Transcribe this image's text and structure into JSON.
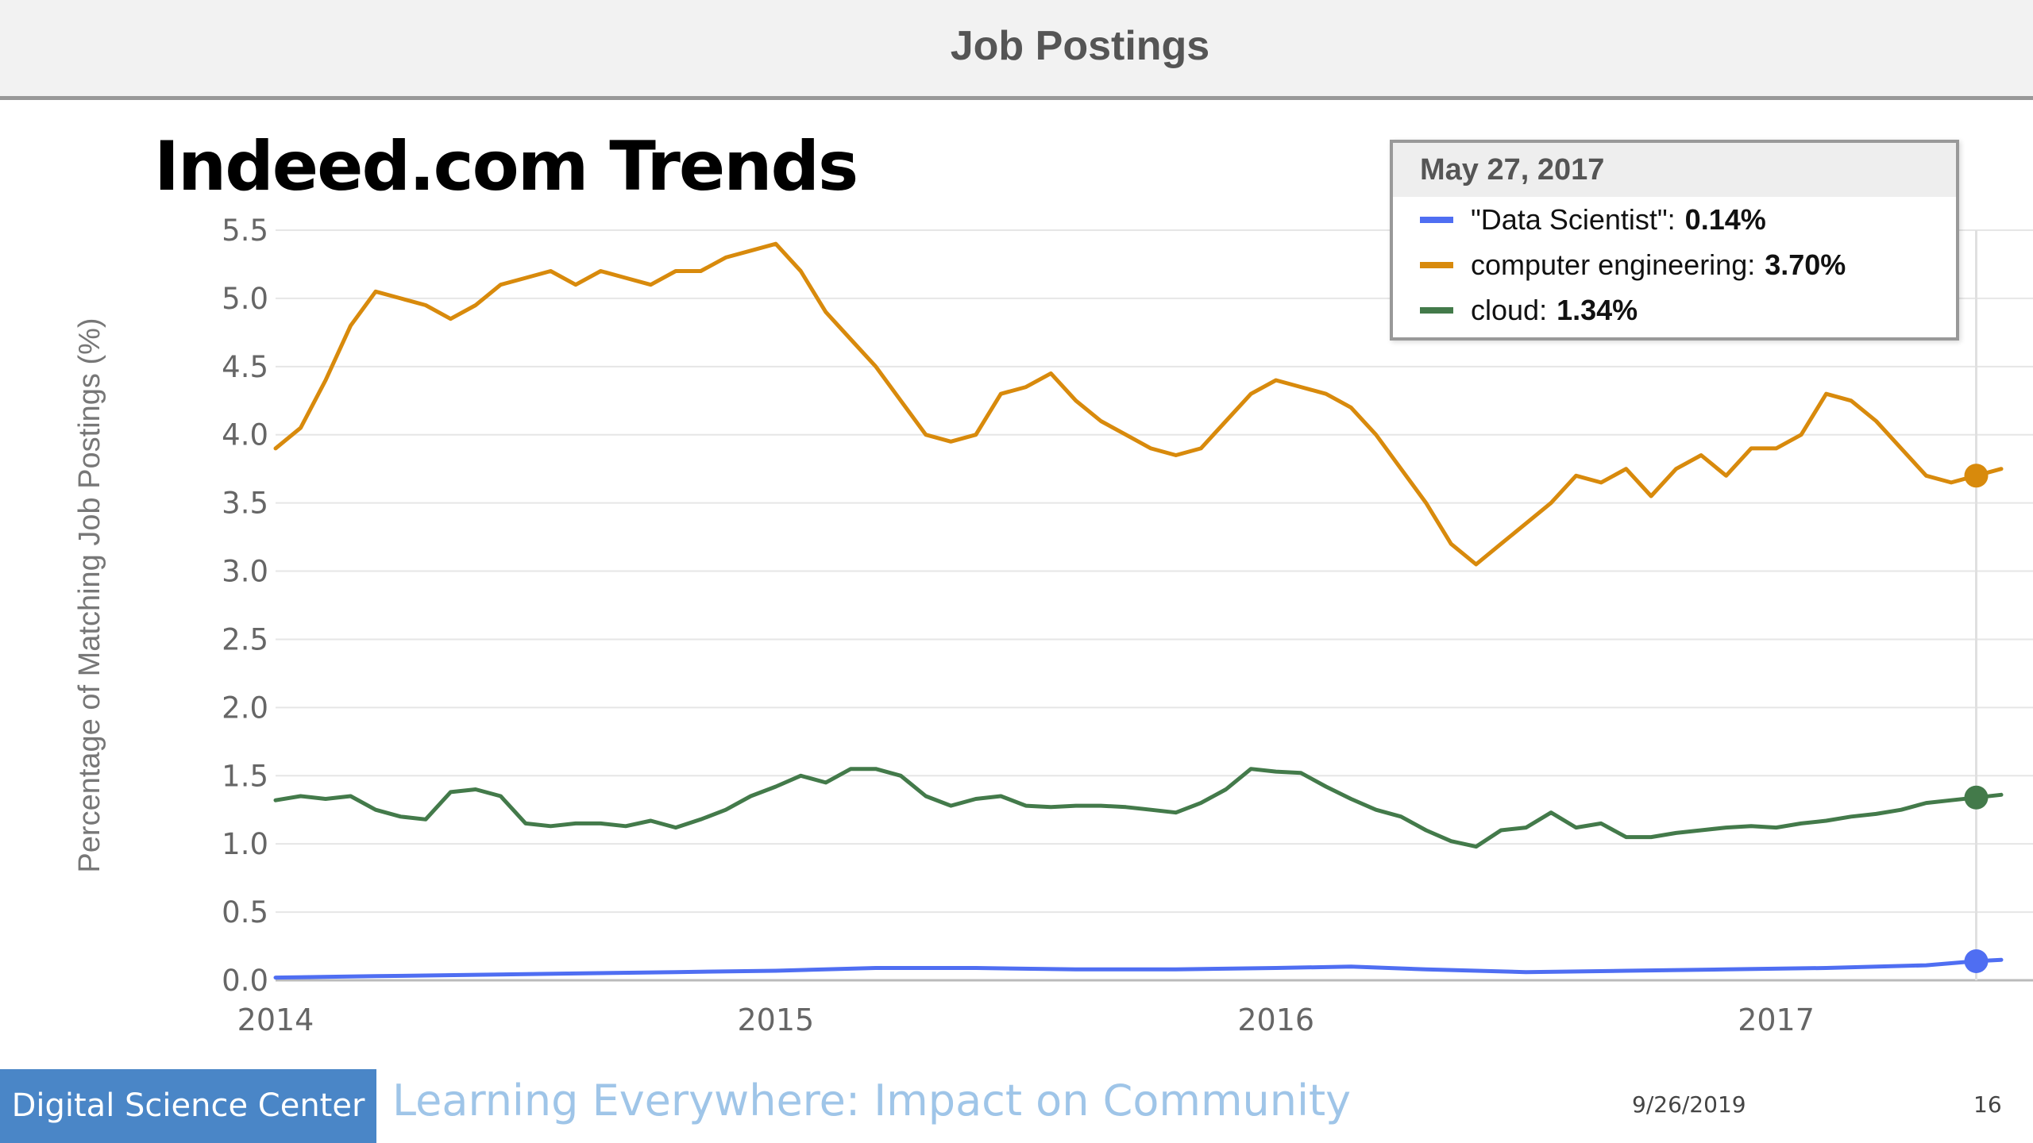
{
  "header": {
    "title": "Job Postings"
  },
  "slide": {
    "title": "Indeed.com Trends"
  },
  "tooltip": {
    "date": "May 27, 2017",
    "rows": [
      {
        "label": "\"Data Scientist\":",
        "value": "0.14%",
        "color": "#4f6ef2"
      },
      {
        "label": "computer engineering:",
        "value": "3.70%",
        "color": "#d88a0c"
      },
      {
        "label": "cloud:",
        "value": "1.34%",
        "color": "#437a4a"
      }
    ]
  },
  "footer": {
    "org": "Digital Science Center",
    "tagline": "Learning Everywhere: Impact on Community",
    "date": "9/26/2019",
    "page": "16"
  },
  "chart_data": {
    "type": "line",
    "ylabel": "Percentage of Matching Job Postings (%)",
    "xlabel": "",
    "ylim": [
      0,
      5.5
    ],
    "xlim": [
      2014.0,
      2017.45
    ],
    "yticks": [
      "0.0",
      "0.5",
      "1.0",
      "1.5",
      "2.0",
      "2.5",
      "3.0",
      "3.5",
      "4.0",
      "4.5",
      "5.0",
      "5.5"
    ],
    "xticks": [
      {
        "value": 2014,
        "label": "2014"
      },
      {
        "value": 2015,
        "label": "2015"
      },
      {
        "value": 2016,
        "label": "2016"
      },
      {
        "value": 2017,
        "label": "2017"
      }
    ],
    "grid": true,
    "hover_x": 2017.4,
    "series": [
      {
        "name": "\"Data Scientist\"",
        "color": "#4f6ef2",
        "x": [
          2014.0,
          2014.2,
          2014.4,
          2014.6,
          2014.8,
          2015.0,
          2015.2,
          2015.4,
          2015.6,
          2015.8,
          2016.0,
          2016.15,
          2016.3,
          2016.5,
          2016.7,
          2016.9,
          2017.1,
          2017.3,
          2017.4,
          2017.45
        ],
        "y": [
          0.02,
          0.03,
          0.04,
          0.05,
          0.06,
          0.07,
          0.09,
          0.09,
          0.08,
          0.08,
          0.09,
          0.1,
          0.08,
          0.06,
          0.07,
          0.08,
          0.09,
          0.11,
          0.14,
          0.15
        ]
      },
      {
        "name": "computer engineering",
        "color": "#d88a0c",
        "x": [
          2014.0,
          2014.05,
          2014.1,
          2014.15,
          2014.2,
          2014.25,
          2014.3,
          2014.35,
          2014.4,
          2014.45,
          2014.5,
          2014.55,
          2014.6,
          2014.65,
          2014.7,
          2014.75,
          2014.8,
          2014.85,
          2014.9,
          2014.95,
          2015.0,
          2015.05,
          2015.1,
          2015.15,
          2015.2,
          2015.25,
          2015.3,
          2015.35,
          2015.4,
          2015.45,
          2015.5,
          2015.55,
          2015.6,
          2015.65,
          2015.7,
          2015.75,
          2015.8,
          2015.85,
          2015.9,
          2015.95,
          2016.0,
          2016.05,
          2016.1,
          2016.15,
          2016.2,
          2016.25,
          2016.3,
          2016.35,
          2016.4,
          2016.45,
          2016.5,
          2016.55,
          2016.6,
          2016.65,
          2016.7,
          2016.75,
          2016.8,
          2016.85,
          2016.9,
          2016.95,
          2017.0,
          2017.05,
          2017.1,
          2017.15,
          2017.2,
          2017.25,
          2017.3,
          2017.35,
          2017.4,
          2017.45
        ],
        "y": [
          3.9,
          4.05,
          4.4,
          4.8,
          5.05,
          5.0,
          4.95,
          4.85,
          4.95,
          5.1,
          5.15,
          5.2,
          5.1,
          5.2,
          5.15,
          5.1,
          5.2,
          5.2,
          5.3,
          5.35,
          5.4,
          5.2,
          4.9,
          4.7,
          4.5,
          4.25,
          4.0,
          3.95,
          4.0,
          4.3,
          4.35,
          4.45,
          4.25,
          4.1,
          4.0,
          3.9,
          3.85,
          3.9,
          4.1,
          4.3,
          4.4,
          4.35,
          4.3,
          4.2,
          4.0,
          3.75,
          3.5,
          3.2,
          3.05,
          3.2,
          3.35,
          3.5,
          3.7,
          3.65,
          3.75,
          3.55,
          3.75,
          3.85,
          3.7,
          3.9,
          3.9,
          4.0,
          4.3,
          4.25,
          4.1,
          3.9,
          3.7,
          3.65,
          3.7,
          3.75
        ]
      },
      {
        "name": "cloud",
        "color": "#437a4a",
        "x": [
          2014.0,
          2014.05,
          2014.1,
          2014.15,
          2014.2,
          2014.25,
          2014.3,
          2014.35,
          2014.4,
          2014.45,
          2014.5,
          2014.55,
          2014.6,
          2014.65,
          2014.7,
          2014.75,
          2014.8,
          2014.85,
          2014.9,
          2014.95,
          2015.0,
          2015.05,
          2015.1,
          2015.15,
          2015.2,
          2015.25,
          2015.3,
          2015.35,
          2015.4,
          2015.45,
          2015.5,
          2015.55,
          2015.6,
          2015.65,
          2015.7,
          2015.75,
          2015.8,
          2015.85,
          2015.9,
          2015.95,
          2016.0,
          2016.05,
          2016.1,
          2016.15,
          2016.2,
          2016.25,
          2016.3,
          2016.35,
          2016.4,
          2016.45,
          2016.5,
          2016.55,
          2016.6,
          2016.65,
          2016.7,
          2016.75,
          2016.8,
          2016.85,
          2016.9,
          2016.95,
          2017.0,
          2017.05,
          2017.1,
          2017.15,
          2017.2,
          2017.25,
          2017.3,
          2017.35,
          2017.4,
          2017.45
        ],
        "y": [
          1.32,
          1.35,
          1.33,
          1.35,
          1.25,
          1.2,
          1.18,
          1.38,
          1.4,
          1.35,
          1.15,
          1.13,
          1.15,
          1.15,
          1.13,
          1.17,
          1.12,
          1.18,
          1.25,
          1.35,
          1.42,
          1.5,
          1.45,
          1.55,
          1.55,
          1.5,
          1.35,
          1.28,
          1.33,
          1.35,
          1.28,
          1.27,
          1.28,
          1.28,
          1.27,
          1.25,
          1.23,
          1.3,
          1.4,
          1.55,
          1.53,
          1.52,
          1.42,
          1.33,
          1.25,
          1.2,
          1.1,
          1.02,
          0.98,
          1.1,
          1.12,
          1.23,
          1.12,
          1.15,
          1.05,
          1.05,
          1.08,
          1.1,
          1.12,
          1.13,
          1.12,
          1.15,
          1.17,
          1.2,
          1.22,
          1.25,
          1.3,
          1.32,
          1.34,
          1.36
        ]
      }
    ]
  }
}
